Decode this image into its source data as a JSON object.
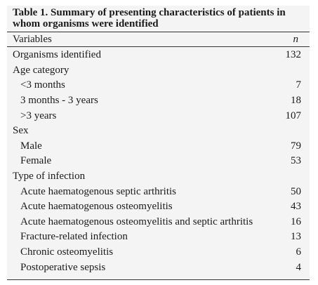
{
  "caption": {
    "line1": "Table 1. Summary of presenting characteristics of patients in",
    "line2": "whom organisms were identified"
  },
  "header": {
    "variables": "Variables",
    "n": "n"
  },
  "rows": [
    {
      "label": "Organisms identified",
      "value": "132",
      "indent": false
    },
    {
      "label": "Age category",
      "value": "",
      "indent": false
    },
    {
      "label": "<3 months",
      "value": "7",
      "indent": true
    },
    {
      "label": "3 months - 3 years",
      "value": "18",
      "indent": true
    },
    {
      "label": ">3 years",
      "value": "107",
      "indent": true
    },
    {
      "label": "Sex",
      "value": "",
      "indent": false
    },
    {
      "label": "Male",
      "value": "79",
      "indent": true
    },
    {
      "label": "Female",
      "value": "53",
      "indent": true
    },
    {
      "label": "Type of infection",
      "value": "",
      "indent": false
    },
    {
      "label": "Acute haematogenous septic arthritis",
      "value": "50",
      "indent": true
    },
    {
      "label": "Acute haematogenous osteomyelitis",
      "value": "43",
      "indent": true
    },
    {
      "label": "Acute haematogenous osteomyelitis and septic arthritis",
      "value": "16",
      "indent": true
    },
    {
      "label": "Fracture-related infection",
      "value": "13",
      "indent": true
    },
    {
      "label": "Chronic osteomyelitis",
      "value": "6",
      "indent": true
    },
    {
      "label": "Postoperative sepsis",
      "value": "4",
      "indent": true
    }
  ]
}
